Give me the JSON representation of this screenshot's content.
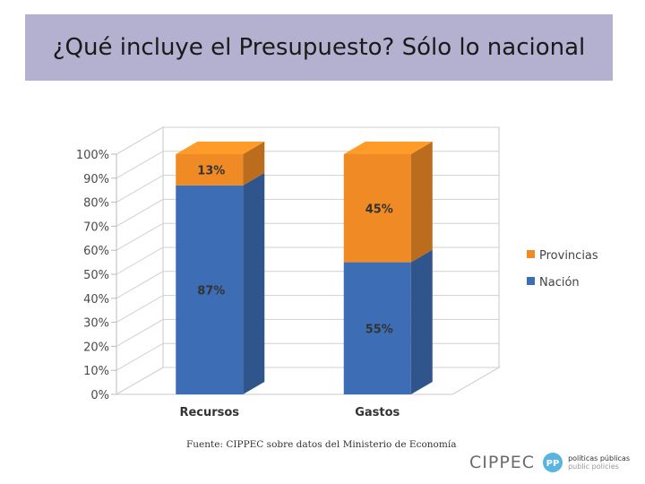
{
  "title": "¿Qué incluye el Presupuesto? Sólo lo nacional",
  "source_note": "Fuente: CIPPEC sobre datos del Ministerio de Economía",
  "footer": {
    "logo_word": "CIPPEC",
    "logo_mark_letters": "PP",
    "logo_side_line1": "políticas públicas",
    "logo_side_line2": "public policies"
  },
  "colors": {
    "title_bg": "#b3b0d0",
    "nacion": "#3d6db5",
    "provincias": "#f08a24",
    "logo_mark": "#5ab4e0"
  },
  "chart_data": {
    "type": "bar",
    "stacked": true,
    "three_d": true,
    "categories": [
      "Recursos",
      "Gastos"
    ],
    "series": [
      {
        "name": "Nación",
        "values": [
          87,
          55
        ],
        "labels": [
          "87%",
          "55%"
        ],
        "color": "#3d6db5"
      },
      {
        "name": "Provincias",
        "values": [
          13,
          45
        ],
        "labels": [
          "13%",
          "45%"
        ],
        "color": "#f08a24"
      }
    ],
    "y_ticks": [
      "0%",
      "10%",
      "20%",
      "30%",
      "40%",
      "50%",
      "60%",
      "70%",
      "80%",
      "90%",
      "100%"
    ],
    "ylim": [
      0,
      100
    ],
    "grid": true,
    "legend": [
      "Provincias",
      "Nación"
    ],
    "legend_position": "right"
  }
}
